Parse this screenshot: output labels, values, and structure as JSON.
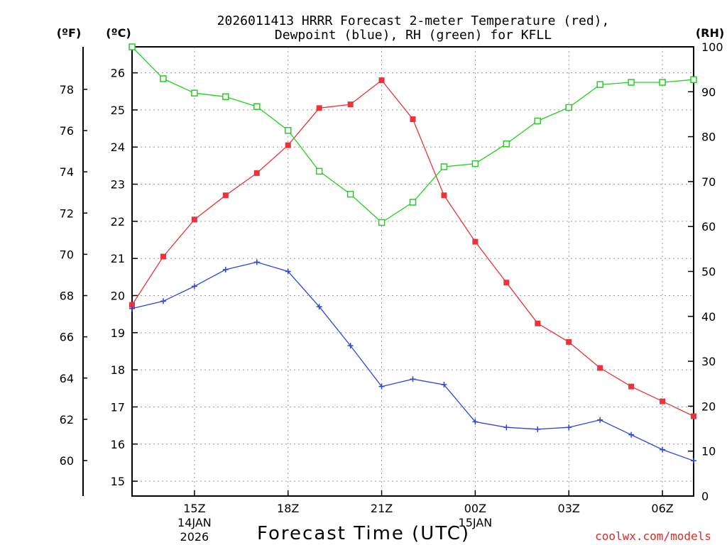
{
  "chart_data": {
    "type": "line",
    "title": [
      "2026011413 HRRR Forecast 2-meter Temperature (red),",
      "Dewpoint (blue), RH (green) for KFLL"
    ],
    "xlabel": "Forecast Time (UTC)",
    "credit": "coolwx.com/models",
    "x_hours": [
      13,
      14,
      15,
      16,
      17,
      18,
      19,
      20,
      21,
      22,
      23,
      24,
      25,
      26,
      27,
      28,
      29,
      30,
      31
    ],
    "xlim": [
      13,
      31
    ],
    "x_ticks": [
      {
        "hour": 15,
        "label": "15Z",
        "sub": [
          "14JAN",
          "2026"
        ]
      },
      {
        "hour": 18,
        "label": "18Z",
        "sub": []
      },
      {
        "hour": 21,
        "label": "21Z",
        "sub": []
      },
      {
        "hour": 24,
        "label": "00Z",
        "sub": [
          "15JAN"
        ]
      },
      {
        "hour": 27,
        "label": "03Z",
        "sub": []
      },
      {
        "hour": 30,
        "label": "06Z",
        "sub": []
      }
    ],
    "left_axis_c": {
      "unit": "(ºC)",
      "ylim": [
        14.6,
        26.7
      ],
      "ticks": [
        15,
        16,
        17,
        18,
        19,
        20,
        21,
        22,
        23,
        24,
        25,
        26
      ]
    },
    "left_axis_f": {
      "unit": "(ºF)",
      "ticks": [
        60,
        62,
        64,
        66,
        68,
        70,
        72,
        74,
        76,
        78
      ]
    },
    "right_axis_rh": {
      "unit": "(RH)",
      "ylim": [
        0,
        100
      ],
      "ticks": [
        0,
        10,
        20,
        30,
        40,
        50,
        60,
        70,
        80,
        90,
        100
      ]
    },
    "series": [
      {
        "name": "Temperature",
        "color": "#e8343a",
        "axis": "c",
        "marker": "filled-square",
        "values": [
          19.75,
          21.05,
          22.05,
          22.7,
          23.3,
          24.05,
          25.05,
          25.15,
          25.8,
          24.75,
          22.7,
          21.45,
          20.35,
          19.25,
          18.75,
          18.05,
          17.55,
          17.15,
          16.75
        ]
      },
      {
        "name": "Dewpoint",
        "color": "#2b43e0",
        "axis": "c",
        "marker": "plus",
        "values": [
          19.65,
          19.85,
          20.25,
          20.7,
          20.9,
          20.65,
          19.7,
          18.65,
          17.55,
          17.75,
          17.6,
          16.6,
          16.45,
          16.4,
          16.45,
          16.65,
          16.25,
          15.85,
          15.55
        ]
      },
      {
        "name": "RH",
        "color": "#1ed41e",
        "axis": "rh",
        "marker": "open-square",
        "values": [
          100,
          92.9,
          89.7,
          88.9,
          86.7,
          81.4,
          72.3,
          67.2,
          60.9,
          65.4,
          73.3,
          74,
          78.4,
          83.5,
          86.5,
          91.6,
          92.1,
          92.1,
          92.7
        ]
      }
    ]
  }
}
